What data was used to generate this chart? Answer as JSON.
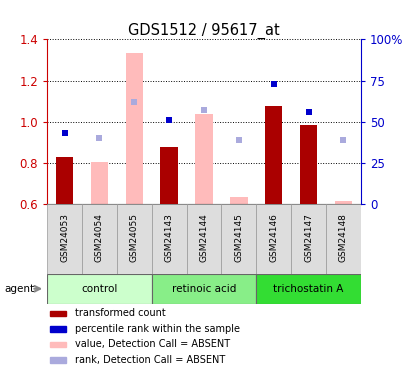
{
  "title": "GDS1512 / 95617_at",
  "samples": [
    "GSM24053",
    "GSM24054",
    "GSM24055",
    "GSM24143",
    "GSM24144",
    "GSM24145",
    "GSM24146",
    "GSM24147",
    "GSM24148"
  ],
  "groups": [
    {
      "label": "control",
      "indices": [
        0,
        1,
        2
      ],
      "color": "#ccffcc"
    },
    {
      "label": "retinoic acid",
      "indices": [
        3,
        4,
        5
      ],
      "color": "#88ee88"
    },
    {
      "label": "trichostatin A",
      "indices": [
        6,
        7,
        8
      ],
      "color": "#33dd33"
    }
  ],
  "absent_flags": [
    false,
    true,
    true,
    false,
    true,
    true,
    false,
    false,
    true
  ],
  "bar_values": [
    0.832,
    null,
    null,
    0.876,
    null,
    null,
    1.075,
    0.984,
    null
  ],
  "absent_bar_values": [
    null,
    0.805,
    1.335,
    null,
    1.04,
    0.638,
    null,
    null,
    0.614
  ],
  "rank_values_pct": [
    43,
    null,
    null,
    51,
    null,
    null,
    73,
    56,
    null
  ],
  "absent_rank_values_pct": [
    null,
    40,
    62,
    null,
    57,
    39,
    null,
    null,
    39
  ],
  "ylim": [
    0.6,
    1.4
  ],
  "yticks": [
    0.6,
    0.8,
    1.0,
    1.2,
    1.4
  ],
  "right_yticks_pct": [
    0,
    25,
    50,
    75,
    100
  ],
  "bar_color": "#aa0000",
  "absent_bar_color": "#ffbbbb",
  "rank_dot_color": "#0000cc",
  "absent_rank_dot_color": "#aaaadd",
  "tick_label_color_left": "#cc0000",
  "tick_label_color_right": "#0000cc",
  "legend_items": [
    {
      "color": "#aa0000",
      "label": "transformed count",
      "type": "square"
    },
    {
      "color": "#0000cc",
      "label": "percentile rank within the sample",
      "type": "square"
    },
    {
      "color": "#ffbbbb",
      "label": "value, Detection Call = ABSENT",
      "type": "square"
    },
    {
      "color": "#aaaadd",
      "label": "rank, Detection Call = ABSENT",
      "type": "square"
    }
  ]
}
